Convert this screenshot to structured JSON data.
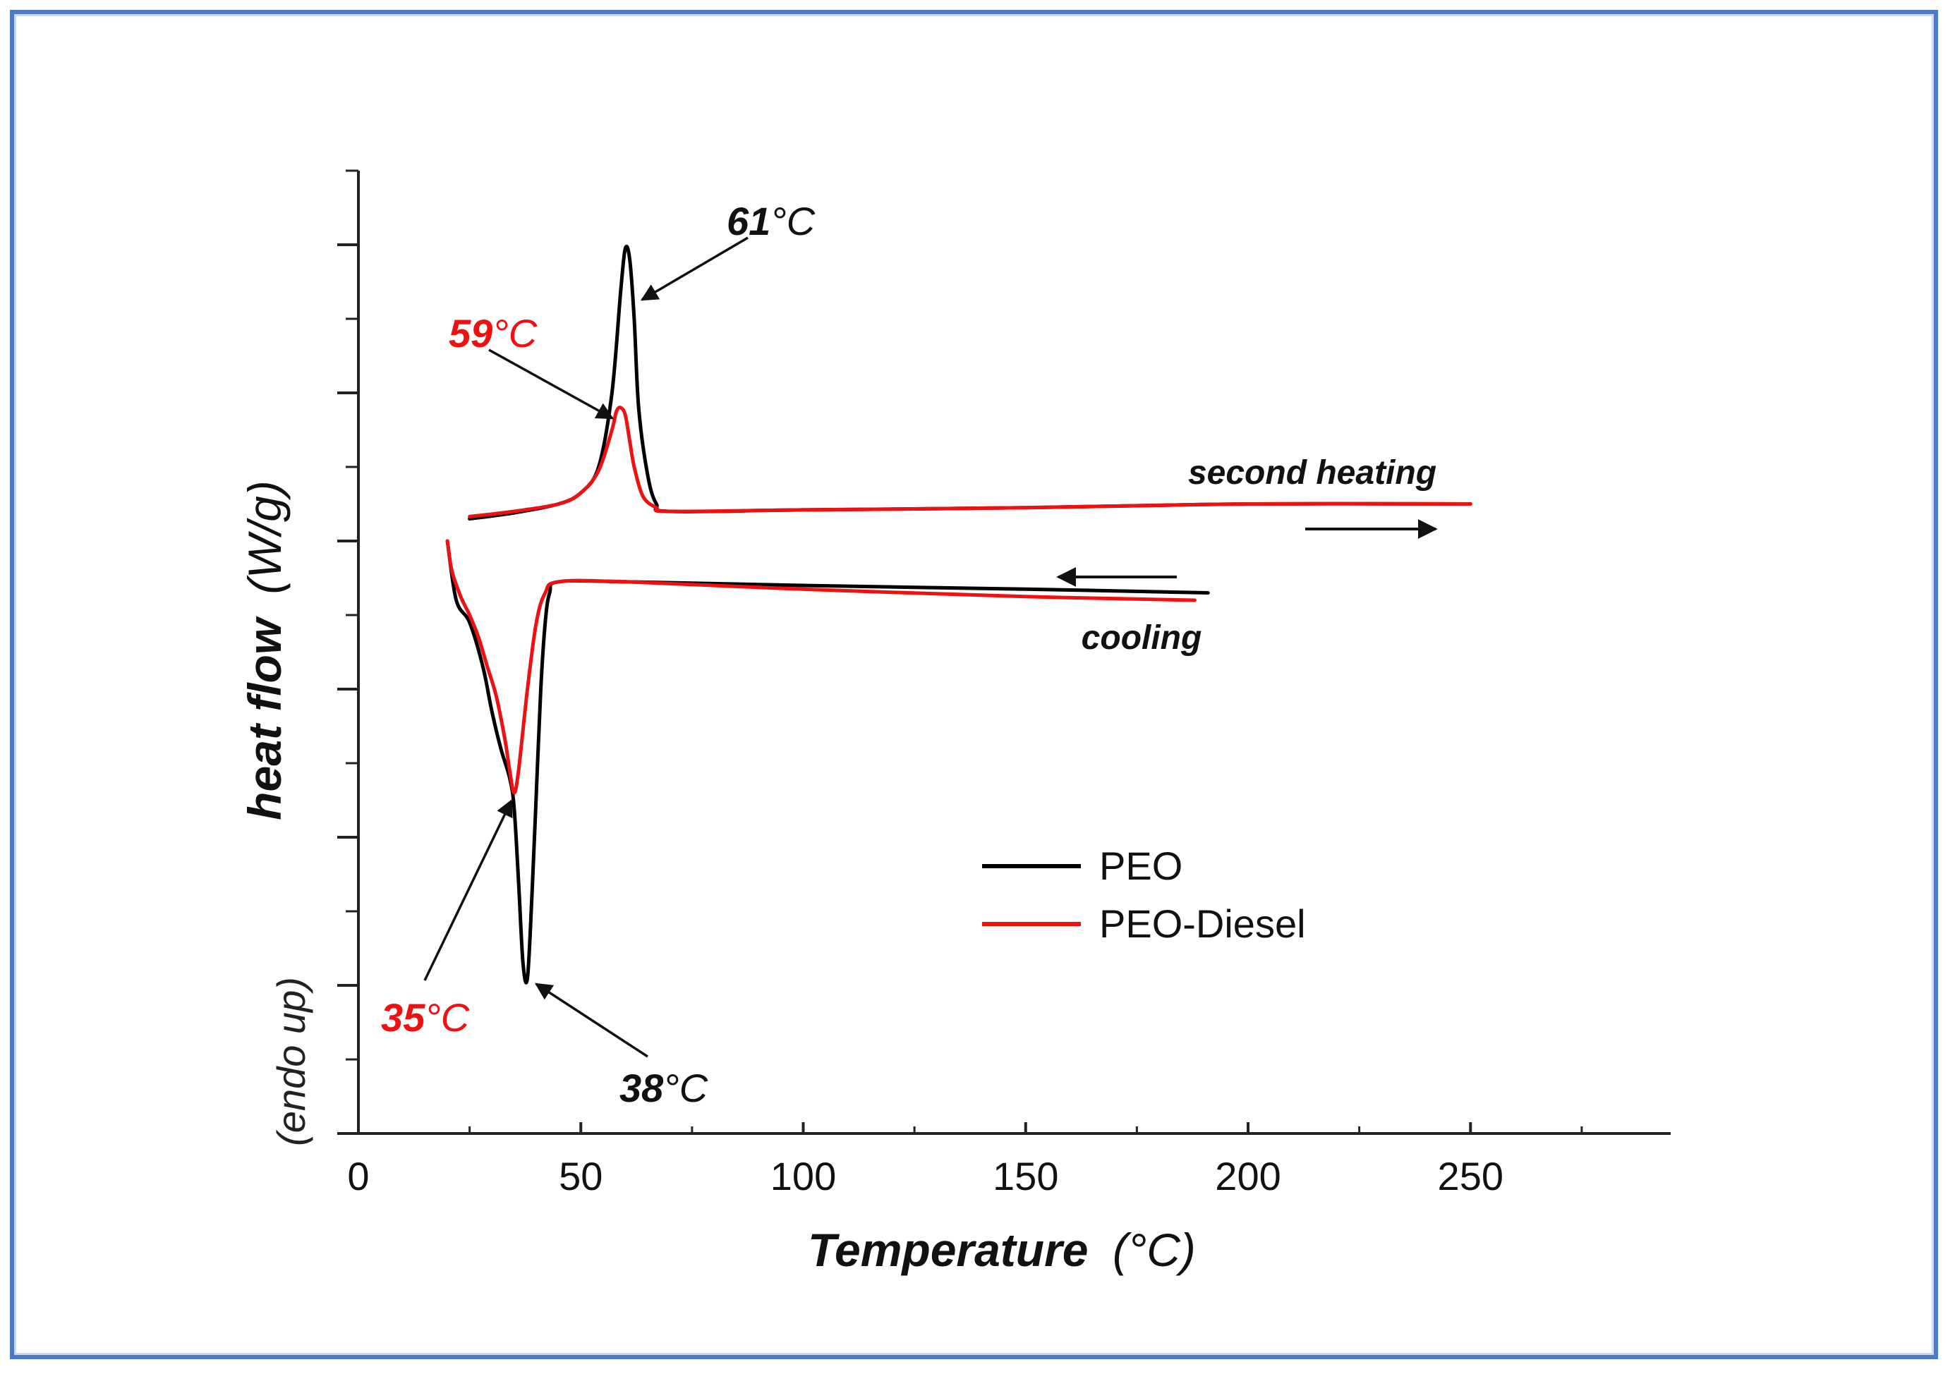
{
  "chart_data": {
    "type": "line",
    "title": "",
    "xlabel": "Temperature",
    "xlabel_unit": "(°C)",
    "ylabel": "heat flow",
    "ylabel_unit": "(W/g)",
    "ylabel_note": "(endo up)",
    "xlim": [
      0,
      295
    ],
    "ylim": [
      0,
      13
    ],
    "xticks": [
      0,
      50,
      100,
      150,
      200,
      250
    ],
    "xtick_labels": [
      "0",
      "50",
      "100",
      "150",
      "200",
      "250"
    ],
    "yticks_major": [
      0,
      2,
      4,
      6,
      8,
      10,
      12
    ],
    "y_tick_labels_shown": false,
    "legend_position": "lower-right",
    "series": [
      {
        "name": "PEO",
        "color": "#000000",
        "segments": [
          {
            "segment": "second heating",
            "x": [
              25,
              35,
              45,
              50,
              54,
              57,
              59,
              60,
              61,
              62,
              63,
              65,
              67,
              70,
              100,
              150,
              200,
              250
            ],
            "y": [
              8.3,
              8.38,
              8.5,
              8.65,
              9.0,
              10.0,
              11.4,
              11.95,
              11.8,
              11.0,
              9.8,
              8.9,
              8.5,
              8.4,
              8.42,
              8.45,
              8.5,
              8.5
            ]
          },
          {
            "segment": "cooling",
            "x": [
              191,
              150,
              100,
              60,
              45,
              43,
              42,
              41,
              40,
              39,
              38,
              37,
              36,
              35,
              34,
              32,
              30,
              28,
              25,
              22,
              20
            ],
            "y": [
              7.3,
              7.35,
              7.4,
              7.45,
              7.45,
              7.3,
              6.9,
              6.0,
              4.6,
              3.2,
              2.1,
              2.3,
              3.4,
              4.4,
              4.8,
              5.2,
              5.7,
              6.3,
              6.9,
              7.2,
              8.0
            ]
          }
        ]
      },
      {
        "name": "PEO-Diesel",
        "color": "#ee1111",
        "segments": [
          {
            "segment": "second heating",
            "x": [
              25,
              35,
              45,
              50,
              54,
              57,
              58,
              59,
              60,
              61,
              62,
              64,
              67,
              70,
              100,
              150,
              200,
              250
            ],
            "y": [
              8.33,
              8.4,
              8.5,
              8.65,
              8.95,
              9.5,
              9.75,
              9.8,
              9.7,
              9.35,
              9.0,
              8.6,
              8.45,
              8.4,
              8.42,
              8.45,
              8.5,
              8.5
            ]
          },
          {
            "segment": "cooling",
            "x": [
              188,
              150,
              100,
              60,
              45,
              42,
              40,
              38,
              36,
              35,
              34,
              33,
              31,
              29,
              27,
              25,
              23,
              21,
              20
            ],
            "y": [
              7.2,
              7.25,
              7.35,
              7.45,
              7.45,
              7.3,
              6.9,
              6.0,
              4.9,
              4.6,
              4.9,
              5.3,
              5.9,
              6.3,
              6.7,
              7.0,
              7.25,
              7.6,
              8.0
            ]
          }
        ]
      }
    ],
    "annotations": [
      {
        "value": "61",
        "unit": "°C",
        "x": 61,
        "y": 11.95,
        "series": "PEO",
        "color": "#111111"
      },
      {
        "value": "59",
        "unit": "°C",
        "x": 59,
        "y": 9.8,
        "series": "PEO-Diesel",
        "color": "#ee1111"
      },
      {
        "value": "35",
        "unit": "°C",
        "x": 35,
        "y": 4.6,
        "series": "PEO-Diesel",
        "color": "#ee1111"
      },
      {
        "value": "38",
        "unit": "°C",
        "x": 38,
        "y": 2.1,
        "series": "PEO",
        "color": "#111111"
      }
    ],
    "segment_labels": {
      "second_heating": "second heating",
      "cooling": "cooling"
    }
  }
}
